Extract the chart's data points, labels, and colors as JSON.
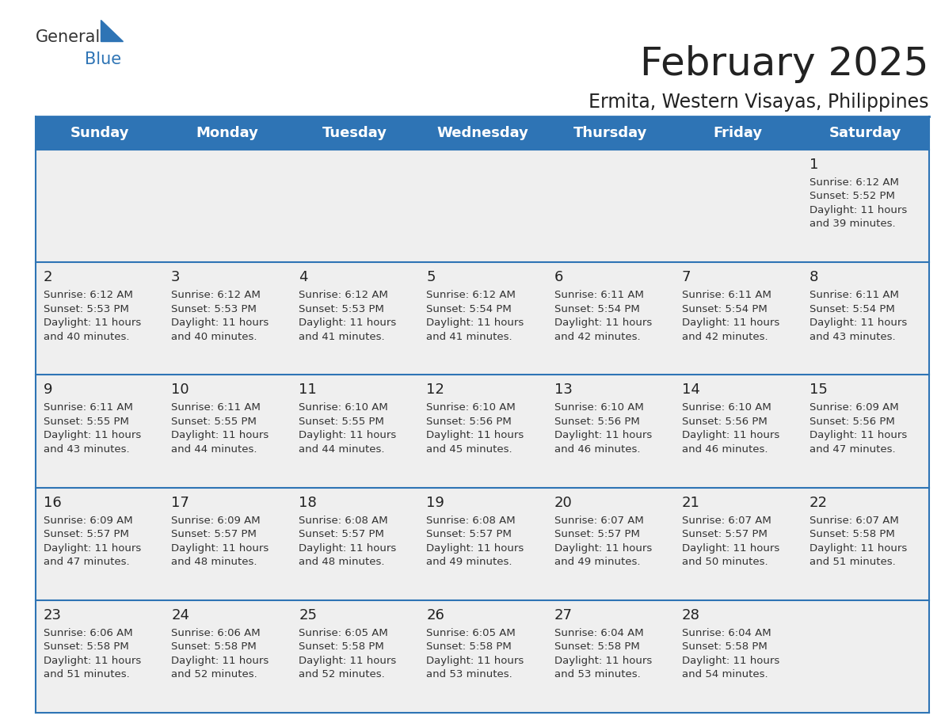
{
  "title": "February 2025",
  "subtitle": "Ermita, Western Visayas, Philippines",
  "header_color": "#2E74B5",
  "header_text_color": "#FFFFFF",
  "background_color": "#FFFFFF",
  "row_bg_color": "#EFEFEF",
  "border_color": "#2E74B5",
  "day_headers": [
    "Sunday",
    "Monday",
    "Tuesday",
    "Wednesday",
    "Thursday",
    "Friday",
    "Saturday"
  ],
  "weeks": [
    [
      {
        "day": null,
        "sunrise": null,
        "sunset": null,
        "daylight": null
      },
      {
        "day": null,
        "sunrise": null,
        "sunset": null,
        "daylight": null
      },
      {
        "day": null,
        "sunrise": null,
        "sunset": null,
        "daylight": null
      },
      {
        "day": null,
        "sunrise": null,
        "sunset": null,
        "daylight": null
      },
      {
        "day": null,
        "sunrise": null,
        "sunset": null,
        "daylight": null
      },
      {
        "day": null,
        "sunrise": null,
        "sunset": null,
        "daylight": null
      },
      {
        "day": 1,
        "sunrise": "6:12 AM",
        "sunset": "5:52 PM",
        "daylight": "11 hours and 39 minutes."
      }
    ],
    [
      {
        "day": 2,
        "sunrise": "6:12 AM",
        "sunset": "5:53 PM",
        "daylight": "11 hours and 40 minutes."
      },
      {
        "day": 3,
        "sunrise": "6:12 AM",
        "sunset": "5:53 PM",
        "daylight": "11 hours and 40 minutes."
      },
      {
        "day": 4,
        "sunrise": "6:12 AM",
        "sunset": "5:53 PM",
        "daylight": "11 hours and 41 minutes."
      },
      {
        "day": 5,
        "sunrise": "6:12 AM",
        "sunset": "5:54 PM",
        "daylight": "11 hours and 41 minutes."
      },
      {
        "day": 6,
        "sunrise": "6:11 AM",
        "sunset": "5:54 PM",
        "daylight": "11 hours and 42 minutes."
      },
      {
        "day": 7,
        "sunrise": "6:11 AM",
        "sunset": "5:54 PM",
        "daylight": "11 hours and 42 minutes."
      },
      {
        "day": 8,
        "sunrise": "6:11 AM",
        "sunset": "5:54 PM",
        "daylight": "11 hours and 43 minutes."
      }
    ],
    [
      {
        "day": 9,
        "sunrise": "6:11 AM",
        "sunset": "5:55 PM",
        "daylight": "11 hours and 43 minutes."
      },
      {
        "day": 10,
        "sunrise": "6:11 AM",
        "sunset": "5:55 PM",
        "daylight": "11 hours and 44 minutes."
      },
      {
        "day": 11,
        "sunrise": "6:10 AM",
        "sunset": "5:55 PM",
        "daylight": "11 hours and 44 minutes."
      },
      {
        "day": 12,
        "sunrise": "6:10 AM",
        "sunset": "5:56 PM",
        "daylight": "11 hours and 45 minutes."
      },
      {
        "day": 13,
        "sunrise": "6:10 AM",
        "sunset": "5:56 PM",
        "daylight": "11 hours and 46 minutes."
      },
      {
        "day": 14,
        "sunrise": "6:10 AM",
        "sunset": "5:56 PM",
        "daylight": "11 hours and 46 minutes."
      },
      {
        "day": 15,
        "sunrise": "6:09 AM",
        "sunset": "5:56 PM",
        "daylight": "11 hours and 47 minutes."
      }
    ],
    [
      {
        "day": 16,
        "sunrise": "6:09 AM",
        "sunset": "5:57 PM",
        "daylight": "11 hours and 47 minutes."
      },
      {
        "day": 17,
        "sunrise": "6:09 AM",
        "sunset": "5:57 PM",
        "daylight": "11 hours and 48 minutes."
      },
      {
        "day": 18,
        "sunrise": "6:08 AM",
        "sunset": "5:57 PM",
        "daylight": "11 hours and 48 minutes."
      },
      {
        "day": 19,
        "sunrise": "6:08 AM",
        "sunset": "5:57 PM",
        "daylight": "11 hours and 49 minutes."
      },
      {
        "day": 20,
        "sunrise": "6:07 AM",
        "sunset": "5:57 PM",
        "daylight": "11 hours and 49 minutes."
      },
      {
        "day": 21,
        "sunrise": "6:07 AM",
        "sunset": "5:57 PM",
        "daylight": "11 hours and 50 minutes."
      },
      {
        "day": 22,
        "sunrise": "6:07 AM",
        "sunset": "5:58 PM",
        "daylight": "11 hours and 51 minutes."
      }
    ],
    [
      {
        "day": 23,
        "sunrise": "6:06 AM",
        "sunset": "5:58 PM",
        "daylight": "11 hours and 51 minutes."
      },
      {
        "day": 24,
        "sunrise": "6:06 AM",
        "sunset": "5:58 PM",
        "daylight": "11 hours and 52 minutes."
      },
      {
        "day": 25,
        "sunrise": "6:05 AM",
        "sunset": "5:58 PM",
        "daylight": "11 hours and 52 minutes."
      },
      {
        "day": 26,
        "sunrise": "6:05 AM",
        "sunset": "5:58 PM",
        "daylight": "11 hours and 53 minutes."
      },
      {
        "day": 27,
        "sunrise": "6:04 AM",
        "sunset": "5:58 PM",
        "daylight": "11 hours and 53 minutes."
      },
      {
        "day": 28,
        "sunrise": "6:04 AM",
        "sunset": "5:58 PM",
        "daylight": "11 hours and 54 minutes."
      },
      {
        "day": null,
        "sunrise": null,
        "sunset": null,
        "daylight": null
      }
    ]
  ],
  "logo_text_general": "General",
  "logo_text_blue": "Blue",
  "logo_general_color": "#333333",
  "logo_blue_color": "#2E74B5",
  "title_fontsize": 36,
  "subtitle_fontsize": 17,
  "header_fontsize": 13,
  "day_num_fontsize": 13,
  "cell_text_fontsize": 9.5
}
